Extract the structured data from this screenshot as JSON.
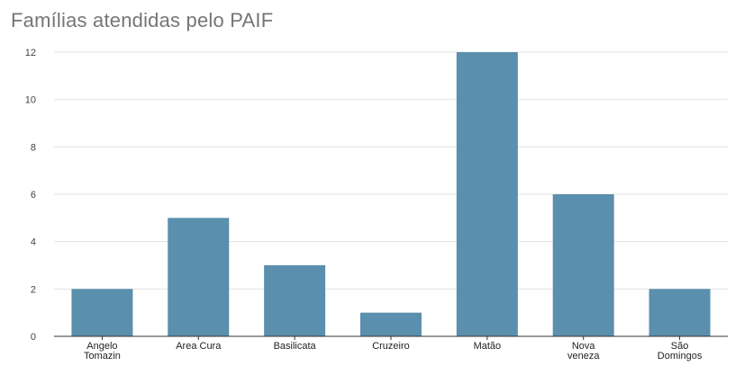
{
  "chart_data": {
    "type": "bar",
    "title": "Famílias atendidas pelo PAIF",
    "xlabel": "",
    "ylabel": "",
    "categories": [
      [
        "Angelo",
        "Tomazin"
      ],
      [
        "Area Cura"
      ],
      [
        "Basilicata"
      ],
      [
        "Cruzeiro"
      ],
      [
        "Matão"
      ],
      [
        "Nova",
        "veneza"
      ],
      [
        "São",
        "Domingos"
      ]
    ],
    "values": [
      2,
      5,
      3,
      1,
      12,
      6,
      2
    ],
    "ylim": [
      0,
      12
    ],
    "yticks": [
      0,
      2,
      4,
      6,
      8,
      10,
      12
    ],
    "grid": true,
    "legend": "none",
    "colors": {
      "bar": "#5a8fad",
      "grid": "#e3e3e3",
      "axis": "#333333"
    }
  }
}
